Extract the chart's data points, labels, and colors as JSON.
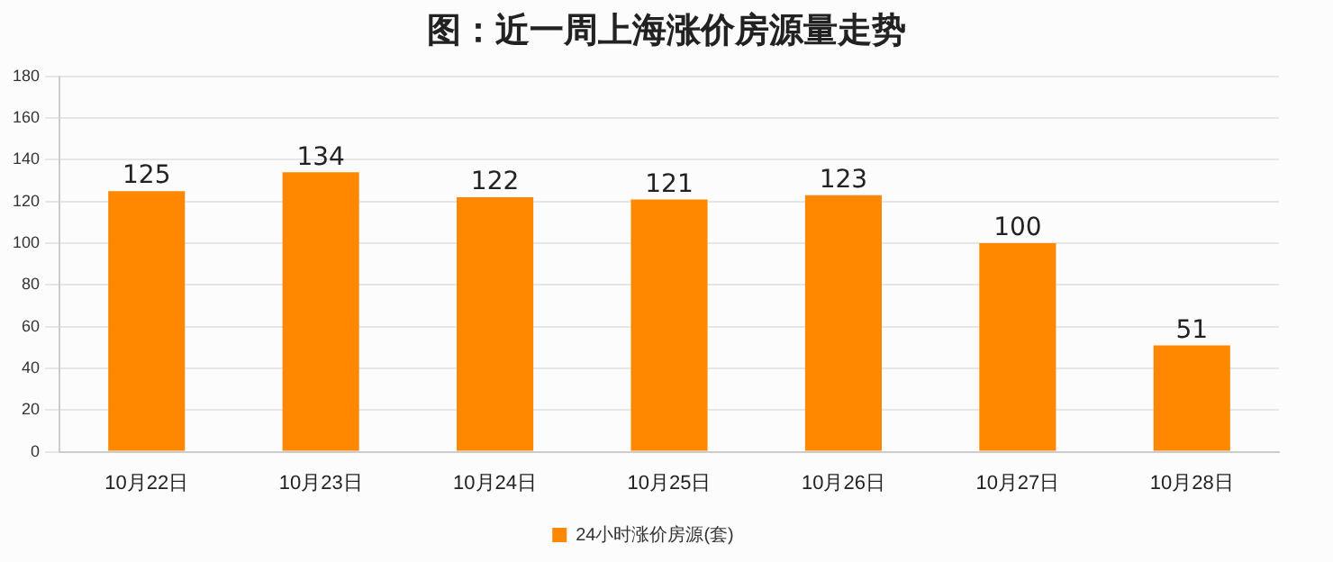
{
  "chart_data": {
    "type": "bar",
    "title": "图：近一周上海涨价房源量走势",
    "categories": [
      "10月22日",
      "10月23日",
      "10月24日",
      "10月25日",
      "10月26日",
      "10月27日",
      "10月28日"
    ],
    "series": [
      {
        "name": "24小时涨价房源(套)",
        "color": "#ff8800",
        "values": [
          125,
          134,
          122,
          121,
          123,
          100,
          51
        ]
      }
    ],
    "ylim": [
      0,
      180
    ],
    "yticks": [
      0,
      20,
      40,
      60,
      80,
      100,
      120,
      140,
      160,
      180
    ],
    "grid": "y",
    "legend": "bottom",
    "data_labels": true
  }
}
